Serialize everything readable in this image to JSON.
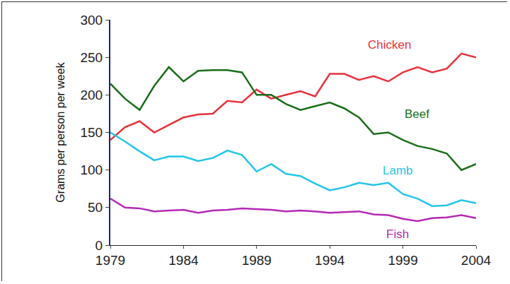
{
  "chart_data": {
    "type": "line",
    "y_label": "Grams per person per week",
    "x": [
      1979,
      1980,
      1981,
      1982,
      1983,
      1984,
      1985,
      1986,
      1987,
      1988,
      1989,
      1990,
      1991,
      1992,
      1993,
      1994,
      1995,
      1996,
      1997,
      1998,
      1999,
      2000,
      2001,
      2002,
      2003,
      2004
    ],
    "series": [
      {
        "name": "Chicken",
        "color": "#e8323c",
        "values": [
          140,
          157,
          165,
          150,
          160,
          170,
          174,
          175,
          192,
          190,
          207,
          195,
          200,
          205,
          198,
          228,
          228,
          220,
          225,
          218,
          230,
          237,
          230,
          235,
          255,
          250
        ]
      },
      {
        "name": "Beef",
        "color": "#1a6e1a",
        "values": [
          215,
          195,
          180,
          212,
          237,
          218,
          232,
          233,
          233,
          230,
          200,
          200,
          188,
          180,
          185,
          190,
          182,
          170,
          148,
          150,
          140,
          132,
          128,
          122,
          100,
          108
        ]
      },
      {
        "name": "Lamb",
        "color": "#22c5e8",
        "values": [
          150,
          138,
          125,
          113,
          118,
          118,
          112,
          116,
          126,
          120,
          98,
          108,
          95,
          92,
          82,
          73,
          77,
          83,
          80,
          83,
          68,
          62,
          52,
          53,
          60,
          56
        ]
      },
      {
        "name": "Fish",
        "color": "#b52ab5",
        "values": [
          62,
          50,
          49,
          45,
          46,
          47,
          43,
          46,
          47,
          49,
          48,
          47,
          45,
          46,
          45,
          43,
          44,
          45,
          41,
          40,
          35,
          32,
          36,
          37,
          40,
          36
        ]
      }
    ],
    "xlim": [
      1979,
      2004
    ],
    "xticks": [
      1979,
      1984,
      1989,
      1994,
      1999,
      2004
    ],
    "ylim": [
      0,
      300
    ],
    "yticks": [
      0,
      50,
      100,
      150,
      200,
      250,
      300
    ],
    "grid": false
  }
}
